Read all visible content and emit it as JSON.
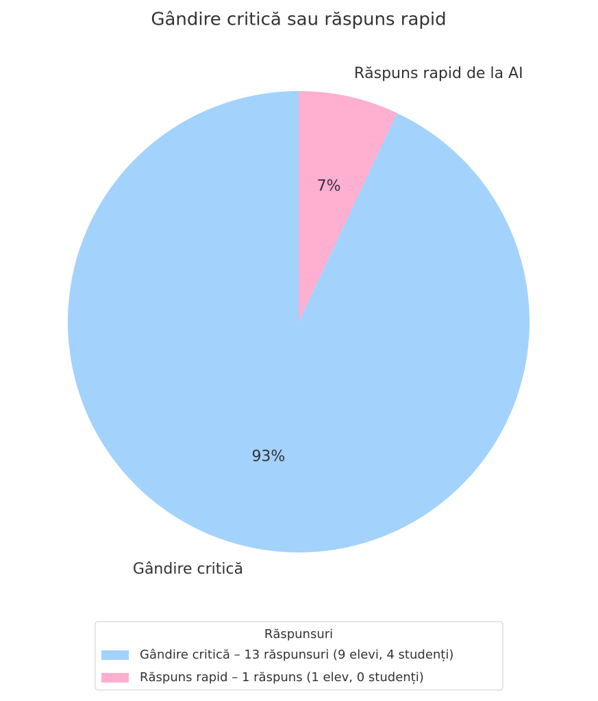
{
  "chart_data": {
    "type": "pie",
    "title": "Gândire critică sau răspuns rapid",
    "categories": [
      "Gândire critică",
      "Răspuns rapid de la AI"
    ],
    "values": [
      93,
      7
    ],
    "value_labels": [
      "93%",
      "7%"
    ],
    "colors": [
      "#a3d2fd",
      "#ffafcf"
    ],
    "legend": {
      "title": "Răspunsuri",
      "labels": [
        "Gândire critică – 13 răspunsuri (9 elevi, 4 studenți)",
        "Răspuns rapid – 1 răspuns (1 elev, 0 studenți)"
      ],
      "position": "bottom"
    }
  }
}
